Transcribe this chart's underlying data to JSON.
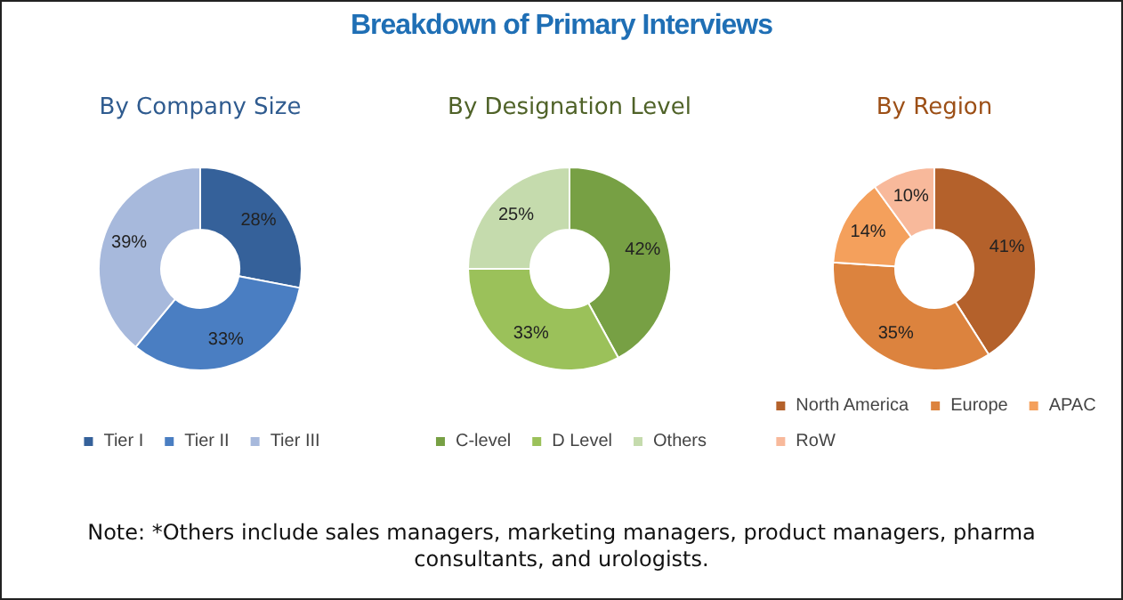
{
  "chart_data": [
    {
      "type": "donut",
      "title": "By Company Size",
      "categories": [
        "Tier I",
        "Tier II",
        "Tier III"
      ],
      "values": [
        28,
        33,
        39
      ],
      "colors": [
        "#35619a",
        "#4a7ec2",
        "#a7b9dc"
      ],
      "value_labels": [
        "28%",
        "33%",
        "39%"
      ],
      "legend": "bottom"
    },
    {
      "type": "donut",
      "title": "By Designation Level",
      "categories": [
        "C-level",
        "D Level",
        "Others"
      ],
      "values": [
        42,
        33,
        25
      ],
      "colors": [
        "#77a044",
        "#9bc15a",
        "#c5dbad"
      ],
      "value_labels": [
        "42%",
        "33%",
        "25%"
      ],
      "legend": "bottom"
    },
    {
      "type": "donut",
      "title": "By Region",
      "categories": [
        "North America",
        "Europe",
        "APAC",
        "RoW"
      ],
      "values": [
        41,
        35,
        14,
        10
      ],
      "colors": [
        "#b4612b",
        "#dc833e",
        "#f4a05c",
        "#f8b99b"
      ],
      "value_labels": [
        "41%",
        "35%",
        "14%",
        "10%"
      ],
      "legend": "bottom"
    },
    {
      "type": "other",
      "title": "Breakdown of Primary Interviews",
      "annotations": [
        "Note: *Others include sales managers, marketing managers, product managers, pharma consultants, and urologists."
      ]
    }
  ]
}
